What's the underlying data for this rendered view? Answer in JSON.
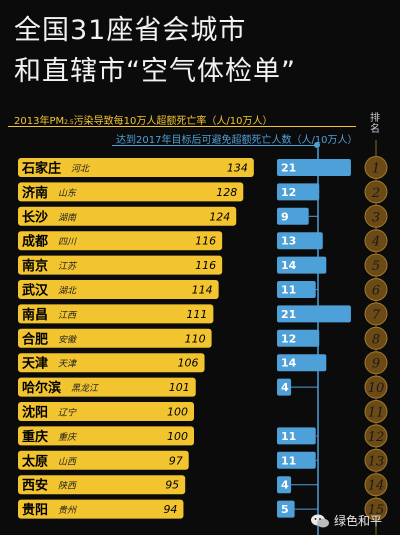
{
  "title_line1": "全国31座省会城市",
  "title_line2": "和直辖市“空气体检单”",
  "legend_primary_prefix": "2013年PM",
  "legend_primary_sub": "2.5",
  "legend_primary_suffix": "污染导致每10万人超额死亡率（人/10万人）",
  "legend_secondary": "达到2017年目标后可避免超额死亡人数（人/10万人）",
  "rank_header": "排名",
  "watermark": "绿色和平",
  "colors": {
    "bar_primary": "#f2c530",
    "bar_secondary": "#4ea0d8",
    "rank_circle": "#6b4a16",
    "rank_text": "#000000"
  },
  "chart_data": {
    "type": "bar",
    "series": [
      {
        "name": "2013年PM2.5污染导致每10万人超额死亡率（人/10万人）",
        "values": [
          134,
          128,
          124,
          116,
          116,
          114,
          111,
          110,
          106,
          101,
          100,
          100,
          97,
          95,
          94
        ]
      },
      {
        "name": "达到2017年目标后可避免超额死亡人数（人/10万人）",
        "values": [
          21,
          12,
          9,
          13,
          14,
          11,
          21,
          12,
          14,
          4,
          null,
          11,
          11,
          4,
          5
        ]
      }
    ],
    "categories": [
      "石家庄",
      "济南",
      "长沙",
      "成都",
      "南京",
      "武汉",
      "南昌",
      "合肥",
      "天津",
      "哈尔滨",
      "沈阳",
      "重庆",
      "太原",
      "西安",
      "贵阳"
    ],
    "provinces": [
      "河北",
      "山东",
      "湖南",
      "四川",
      "江苏",
      "湖北",
      "江西",
      "安徽",
      "天津",
      "黑龙江",
      "辽宁",
      "重庆",
      "山西",
      "陕西",
      "贵州"
    ],
    "ranks": [
      1,
      2,
      3,
      4,
      5,
      6,
      7,
      8,
      9,
      10,
      11,
      12,
      13,
      14,
      15
    ],
    "primary_value_labels": [
      "134",
      "128",
      "124",
      "116",
      "116",
      "114",
      "111",
      "110",
      "106",
      "101",
      "100",
      "100",
      "97",
      "95",
      "94"
    ],
    "secondary_value_labels": [
      "21",
      "12",
      "9",
      "13",
      "14",
      "11",
      "21",
      "12",
      "14",
      "4",
      "",
      "11",
      "11",
      "4",
      "5"
    ],
    "rank_labels": [
      "1",
      "2",
      "3",
      "4",
      "5",
      "6",
      "7",
      "8",
      "9",
      "10",
      "11",
      "12",
      "13",
      "14",
      "15"
    ]
  }
}
